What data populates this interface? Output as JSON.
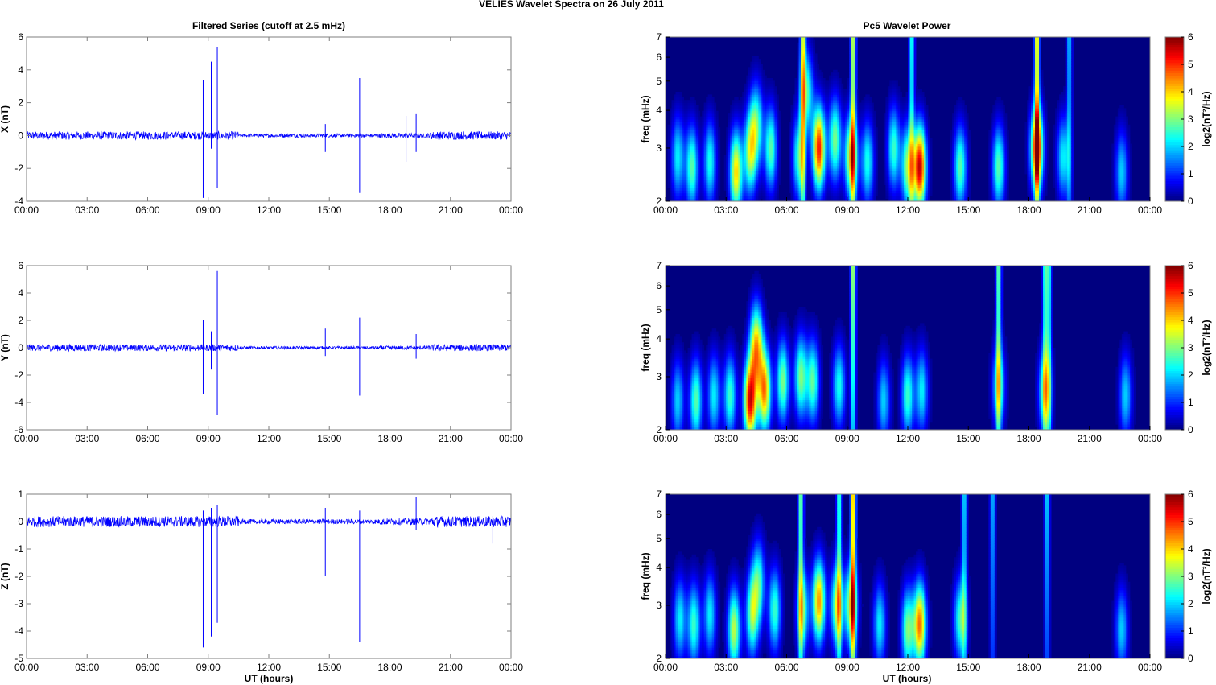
{
  "figure": {
    "suptitle": "VELIES Wavelet Spectra on 26 July      2011",
    "left_title": "Filtered Series (cutoff at 2.5 mHz)",
    "right_title": "Pc5 Wavelet Power",
    "xlabel": "UT (hours)"
  },
  "chart_data": [
    {
      "type": "line",
      "name": "X component filtered series",
      "ylabel": "X (nT)",
      "xlim": [
        0,
        24
      ],
      "ylim": [
        -4,
        6
      ],
      "yticks": [
        "6",
        "4",
        "2",
        "0",
        "-2",
        "-4"
      ],
      "xticks": [
        "00:00",
        "03:00",
        "06:00",
        "09:00",
        "12:00",
        "15:00",
        "18:00",
        "21:00",
        "00:00"
      ],
      "noise_amplitude": 0.25,
      "color": "#0000ff",
      "spikes": [
        {
          "t": 8.75,
          "min": -3.8,
          "max": 3.4
        },
        {
          "t": 9.15,
          "min": -0.8,
          "max": 4.5
        },
        {
          "t": 9.45,
          "min": -3.2,
          "max": 5.4
        },
        {
          "t": 16.5,
          "min": -3.5,
          "max": 3.5
        },
        {
          "t": 18.8,
          "min": -1.6,
          "max": 1.2
        },
        {
          "t": 19.3,
          "min": -1.0,
          "max": 1.3
        },
        {
          "t": 14.8,
          "min": -1.0,
          "max": 0.7
        }
      ]
    },
    {
      "type": "line",
      "name": "Y component filtered series",
      "ylabel": "Y (nT)",
      "xlim": [
        0,
        24
      ],
      "ylim": [
        -6,
        6
      ],
      "yticks": [
        "6",
        "4",
        "2",
        "0",
        "-2",
        "-4",
        "-6"
      ],
      "xticks": [
        "00:00",
        "03:00",
        "06:00",
        "09:00",
        "12:00",
        "15:00",
        "18:00",
        "21:00",
        "00:00"
      ],
      "noise_amplitude": 0.25,
      "color": "#0000ff",
      "spikes": [
        {
          "t": 8.75,
          "min": -3.4,
          "max": 2.0
        },
        {
          "t": 9.15,
          "min": -1.6,
          "max": 1.2
        },
        {
          "t": 9.45,
          "min": -4.9,
          "max": 5.6
        },
        {
          "t": 14.8,
          "min": -0.6,
          "max": 1.4
        },
        {
          "t": 16.5,
          "min": -3.5,
          "max": 2.2
        },
        {
          "t": 19.3,
          "min": -0.8,
          "max": 1.0
        }
      ]
    },
    {
      "type": "line",
      "name": "Z component filtered series",
      "ylabel": "Z (nT)",
      "xlim": [
        0,
        24
      ],
      "ylim": [
        -5,
        1
      ],
      "yticks": [
        "1",
        "0",
        "-1",
        "-2",
        "-3",
        "-4",
        "-5"
      ],
      "xticks": [
        "00:00",
        "03:00",
        "06:00",
        "09:00",
        "12:00",
        "15:00",
        "18:00",
        "21:00",
        "00:00"
      ],
      "noise_amplitude": 0.2,
      "color": "#0000ff",
      "spikes": [
        {
          "t": 8.75,
          "min": -4.6,
          "max": 0.4
        },
        {
          "t": 9.15,
          "min": -4.2,
          "max": 0.5
        },
        {
          "t": 9.45,
          "min": -3.7,
          "max": 0.6
        },
        {
          "t": 14.8,
          "min": -2.0,
          "max": 0.5
        },
        {
          "t": 16.5,
          "min": -4.4,
          "max": 0.4
        },
        {
          "t": 19.3,
          "min": -0.3,
          "max": 0.9
        },
        {
          "t": 23.1,
          "min": -0.8,
          "max": 0.2
        }
      ]
    },
    {
      "type": "heatmap",
      "name": "Pc5 wavelet power X",
      "ylabel": "freq (mHz)",
      "colorbar_label": "log2(nT²/Hz)",
      "xlim": [
        0,
        24
      ],
      "ylim": [
        2,
        7
      ],
      "yscale": "log",
      "clim": [
        0,
        6
      ],
      "yticks": [
        "7",
        "6",
        "5",
        "4",
        "3",
        "2"
      ],
      "cbar_ticks": [
        "6",
        "5",
        "4",
        "3",
        "2",
        "1",
        "0"
      ],
      "xticks": [
        "00:00",
        "03:00",
        "06:00",
        "09:00",
        "12:00",
        "15:00",
        "18:00",
        "21:00",
        "00:00"
      ],
      "blobs": [
        {
          "t": 0.6,
          "f": 2.8,
          "peak": 2.2
        },
        {
          "t": 1.3,
          "f": 2.6,
          "peak": 2.8
        },
        {
          "t": 2.2,
          "f": 2.7,
          "peak": 2.4
        },
        {
          "t": 3.5,
          "f": 2.5,
          "peak": 4.0
        },
        {
          "t": 4.2,
          "f": 2.9,
          "peak": 3.2
        },
        {
          "t": 4.5,
          "f": 3.6,
          "peak": 2.6
        },
        {
          "t": 5.2,
          "f": 3.0,
          "peak": 2.8
        },
        {
          "t": 6.6,
          "f": 2.8,
          "peak": 2.6
        },
        {
          "t": 7.0,
          "f": 4.6,
          "peak": 2.6
        },
        {
          "t": 7.6,
          "f": 3.0,
          "peak": 5.2
        },
        {
          "t": 8.4,
          "f": 3.2,
          "peak": 3.0
        },
        {
          "t": 9.2,
          "f": 2.8,
          "peak": 3.8
        },
        {
          "t": 10.0,
          "f": 2.7,
          "peak": 2.4
        },
        {
          "t": 11.3,
          "f": 3.0,
          "peak": 2.6
        },
        {
          "t": 12.0,
          "f": 2.6,
          "peak": 3.2
        },
        {
          "t": 12.6,
          "f": 2.6,
          "peak": 5.6
        },
        {
          "t": 14.6,
          "f": 2.6,
          "peak": 2.8
        },
        {
          "t": 16.5,
          "f": 2.6,
          "peak": 2.8
        },
        {
          "t": 18.4,
          "f": 3.0,
          "peak": 5.0
        },
        {
          "t": 19.7,
          "f": 2.8,
          "peak": 2.2
        },
        {
          "t": 22.6,
          "f": 2.5,
          "peak": 2.0
        }
      ],
      "streaks": [
        {
          "t": 6.8,
          "peak": 3.6
        },
        {
          "t": 9.3,
          "peak": 3.8
        },
        {
          "t": 12.2,
          "peak": 2.6
        },
        {
          "t": 18.4,
          "peak": 4.2
        },
        {
          "t": 20.0,
          "peak": 2.0
        }
      ]
    },
    {
      "type": "heatmap",
      "name": "Pc5 wavelet power Y",
      "ylabel": "freq (mHz)",
      "colorbar_label": "log2(nT²/Hz)",
      "xlim": [
        0,
        24
      ],
      "ylim": [
        2,
        7
      ],
      "yscale": "log",
      "clim": [
        0,
        6
      ],
      "yticks": [
        "7",
        "6",
        "5",
        "4",
        "3",
        "2"
      ],
      "cbar_ticks": [
        "6",
        "5",
        "4",
        "3",
        "2",
        "1",
        "0"
      ],
      "xticks": [
        "00:00",
        "03:00",
        "06:00",
        "09:00",
        "12:00",
        "15:00",
        "18:00",
        "21:00",
        "00:00"
      ],
      "blobs": [
        {
          "t": 0.6,
          "f": 2.5,
          "peak": 2.0
        },
        {
          "t": 1.5,
          "f": 2.5,
          "peak": 2.8
        },
        {
          "t": 2.4,
          "f": 2.6,
          "peak": 2.2
        },
        {
          "t": 3.2,
          "f": 2.6,
          "peak": 2.6
        },
        {
          "t": 4.2,
          "f": 2.5,
          "peak": 5.4
        },
        {
          "t": 4.5,
          "f": 3.8,
          "peak": 4.0
        },
        {
          "t": 4.9,
          "f": 2.7,
          "peak": 4.4
        },
        {
          "t": 5.8,
          "f": 2.9,
          "peak": 3.0
        },
        {
          "t": 6.7,
          "f": 3.0,
          "peak": 3.0
        },
        {
          "t": 7.3,
          "f": 2.9,
          "peak": 2.8
        },
        {
          "t": 8.6,
          "f": 2.8,
          "peak": 2.4
        },
        {
          "t": 10.8,
          "f": 2.5,
          "peak": 2.0
        },
        {
          "t": 12.0,
          "f": 2.6,
          "peak": 2.6
        },
        {
          "t": 12.7,
          "f": 2.7,
          "peak": 2.2
        },
        {
          "t": 16.5,
          "f": 2.8,
          "peak": 2.4
        },
        {
          "t": 18.8,
          "f": 2.7,
          "peak": 2.8
        },
        {
          "t": 22.8,
          "f": 2.6,
          "peak": 2.0
        }
      ],
      "streaks": [
        {
          "t": 9.3,
          "peak": 3.6
        },
        {
          "t": 16.5,
          "peak": 3.2
        },
        {
          "t": 18.8,
          "peak": 2.6
        },
        {
          "t": 19.0,
          "peak": 2.4
        }
      ]
    },
    {
      "type": "heatmap",
      "name": "Pc5 wavelet power Z",
      "ylabel": "freq (mHz)",
      "colorbar_label": "log2(nT²/Hz)",
      "xlim": [
        0,
        24
      ],
      "ylim": [
        2,
        7
      ],
      "yscale": "log",
      "clim": [
        0,
        6
      ],
      "yticks": [
        "7",
        "6",
        "5",
        "4",
        "3",
        "2"
      ],
      "cbar_ticks": [
        "6",
        "5",
        "4",
        "3",
        "2",
        "1",
        "0"
      ],
      "xticks": [
        "00:00",
        "03:00",
        "06:00",
        "09:00",
        "12:00",
        "15:00",
        "18:00",
        "21:00",
        "00:00"
      ],
      "blobs": [
        {
          "t": 0.7,
          "f": 2.7,
          "peak": 2.2
        },
        {
          "t": 1.4,
          "f": 2.6,
          "peak": 2.6
        },
        {
          "t": 2.2,
          "f": 2.8,
          "peak": 2.2
        },
        {
          "t": 3.4,
          "f": 2.5,
          "peak": 3.4
        },
        {
          "t": 4.3,
          "f": 2.8,
          "peak": 3.0
        },
        {
          "t": 4.6,
          "f": 3.6,
          "peak": 2.4
        },
        {
          "t": 5.4,
          "f": 2.9,
          "peak": 2.6
        },
        {
          "t": 6.8,
          "f": 2.9,
          "peak": 2.6
        },
        {
          "t": 7.6,
          "f": 3.1,
          "peak": 4.4
        },
        {
          "t": 8.5,
          "f": 3.0,
          "peak": 3.2
        },
        {
          "t": 9.2,
          "f": 3.0,
          "peak": 3.4
        },
        {
          "t": 10.6,
          "f": 2.6,
          "peak": 2.2
        },
        {
          "t": 12.0,
          "f": 2.5,
          "peak": 3.0
        },
        {
          "t": 12.6,
          "f": 2.6,
          "peak": 4.6
        },
        {
          "t": 14.6,
          "f": 2.7,
          "peak": 2.6
        },
        {
          "t": 22.6,
          "f": 2.5,
          "peak": 2.0
        }
      ],
      "streaks": [
        {
          "t": 6.7,
          "peak": 3.2
        },
        {
          "t": 8.6,
          "peak": 2.8
        },
        {
          "t": 9.3,
          "peak": 4.6
        },
        {
          "t": 14.8,
          "peak": 2.2
        },
        {
          "t": 16.2,
          "peak": 2.0
        },
        {
          "t": 18.9,
          "peak": 2.2
        }
      ]
    }
  ]
}
